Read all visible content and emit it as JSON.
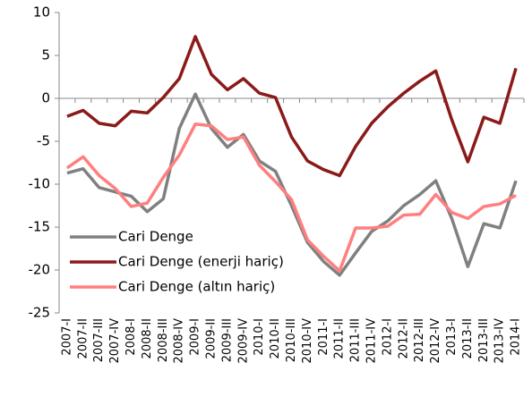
{
  "chart_data": {
    "type": "line",
    "categories": [
      "2007-I",
      "2007-II",
      "2007-III",
      "2007-IV",
      "2008-I",
      "2008-II",
      "2008-III",
      "2008-IV",
      "2009-I",
      "2009-II",
      "2009-III",
      "2009-IV",
      "2010-I",
      "2010-II",
      "2010-III",
      "2010-IV",
      "2011-I",
      "2011-II",
      "2011-III",
      "2011-IV",
      "2012-I",
      "2012-II",
      "2012-III",
      "2012-IV",
      "2013-I",
      "2013-II",
      "2013-III",
      "2013-IV",
      "2014-I"
    ],
    "series": [
      {
        "name": "Cari Denge",
        "color": "#808080",
        "values": [
          -8.7,
          -8.2,
          -10.4,
          -10.9,
          -11.4,
          -13.2,
          -11.7,
          -3.5,
          0.5,
          -3.5,
          -5.7,
          -4.2,
          -7.3,
          -8.5,
          -12.5,
          -16.8,
          -19.0,
          -20.6,
          -18.0,
          -15.5,
          -14.3,
          -12.5,
          -11.2,
          -9.6,
          -14.0,
          -19.6,
          -14.6,
          -15.1,
          -9.6
        ]
      },
      {
        "name": "Cari Denge (enerji hariç)",
        "color": "#8b1a1a",
        "values": [
          -2.1,
          -1.4,
          -2.9,
          -3.2,
          -1.5,
          -1.7,
          0.1,
          2.3,
          7.2,
          2.8,
          1.0,
          2.3,
          0.6,
          0.1,
          -4.5,
          -7.3,
          -8.3,
          -9.0,
          -5.6,
          -2.9,
          -1.0,
          0.6,
          2.0,
          3.2,
          -2.5,
          -7.4,
          -2.2,
          -2.9,
          3.5
        ]
      },
      {
        "name": "Cari Denge (altın hariç)",
        "color": "#ff7f7f",
        "values": [
          -8.1,
          -6.8,
          -9.0,
          -10.5,
          -12.6,
          -12.2,
          -9.2,
          -6.6,
          -3.0,
          -3.2,
          -4.8,
          -4.5,
          -7.8,
          -9.7,
          -11.8,
          -16.5,
          -18.4,
          -20.1,
          -15.1,
          -15.1,
          -14.9,
          -13.6,
          -13.5,
          -11.2,
          -13.3,
          -14.0,
          -12.6,
          -12.3,
          -11.3
        ]
      }
    ],
    "ylim": [
      -25,
      10
    ],
    "yticks": [
      -25,
      -20,
      -15,
      -10,
      -5,
      0,
      5,
      10
    ],
    "legend": "lower left"
  }
}
